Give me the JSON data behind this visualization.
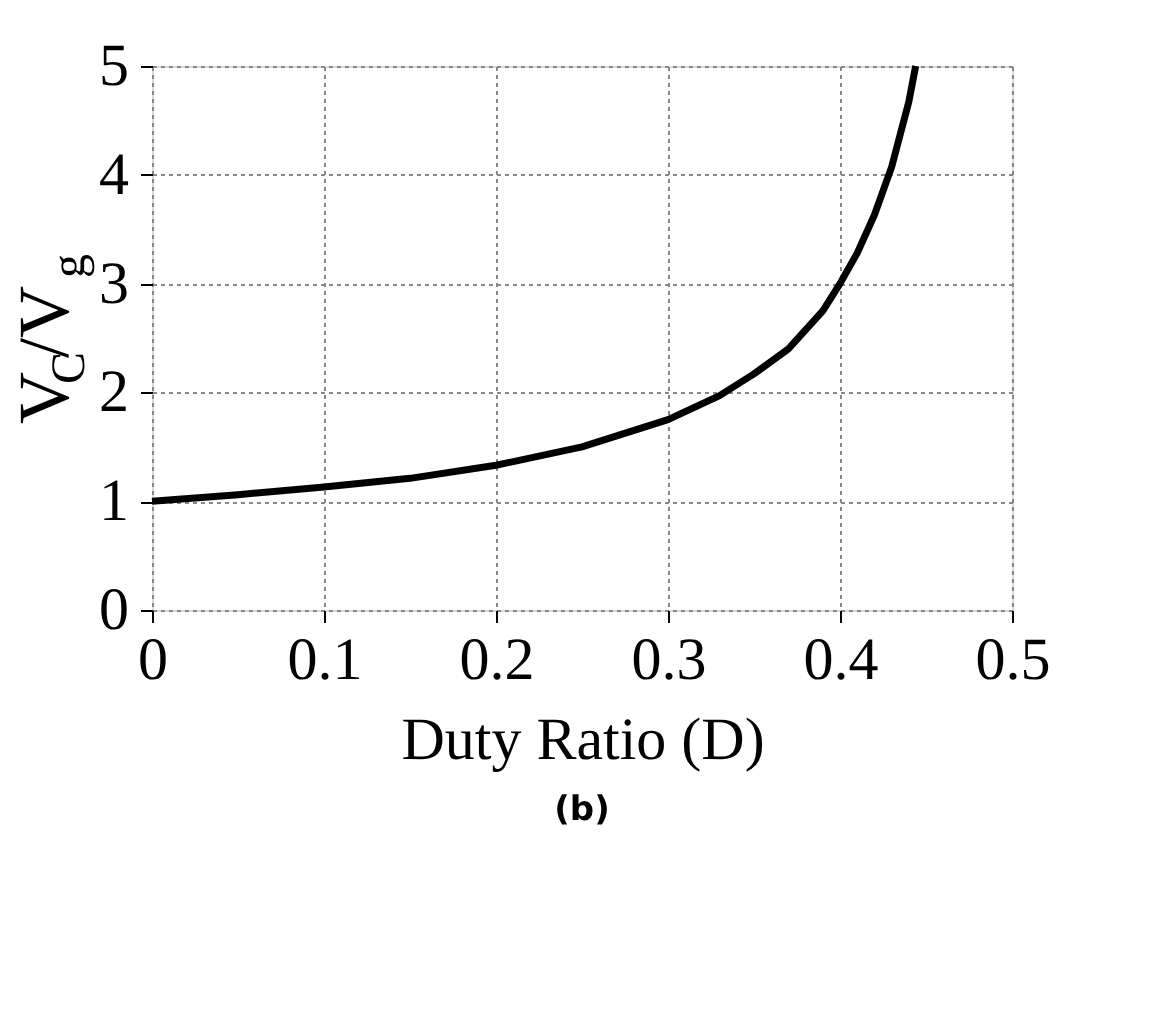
{
  "chart_data": {
    "type": "line",
    "xlabel": "Duty Ratio (D)",
    "ylabel": "V$_{C}$/V$_{g}$",
    "title": "(b)",
    "x": [
      0,
      0.05,
      0.1,
      0.15,
      0.2,
      0.25,
      0.3,
      0.33,
      0.35,
      0.37,
      0.39,
      0.4,
      0.41,
      0.42,
      0.43,
      0.44,
      0.444
    ],
    "series": [
      {
        "color": "#000000",
        "values": [
          1,
          1.06,
          1.13,
          1.21,
          1.33,
          1.5,
          1.75,
          1.97,
          2.17,
          2.4,
          2.75,
          3,
          3.28,
          3.63,
          4.07,
          4.67,
          5.0
        ]
      }
    ],
    "xlim": [
      0,
      0.5
    ],
    "xticks": [
      0,
      0.1,
      0.2,
      0.3,
      0.4,
      0.5
    ],
    "ylim": [
      0,
      5
    ],
    "yticks": [
      0,
      1,
      2,
      3,
      4,
      5
    ],
    "grid": true,
    "marker": "none",
    "line_style": "solid"
  }
}
